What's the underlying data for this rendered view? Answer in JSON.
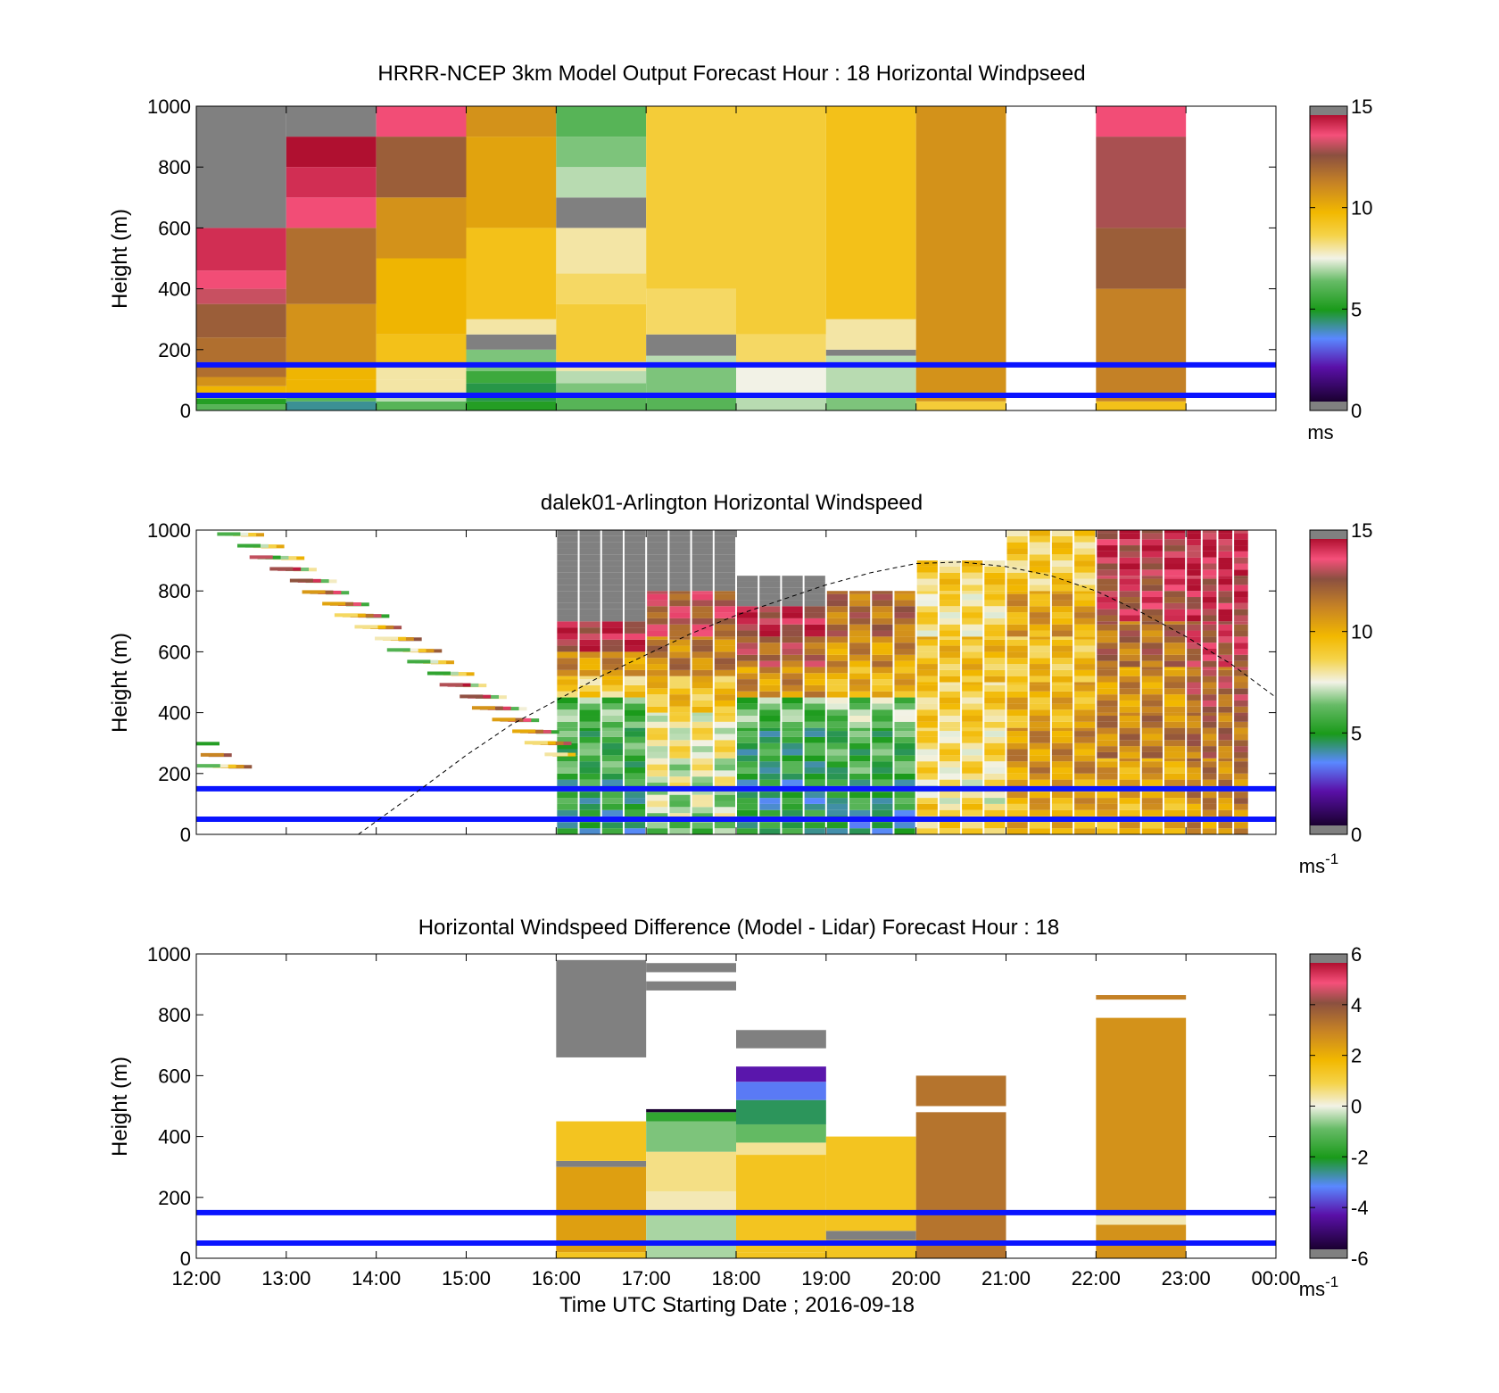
{
  "figure": {
    "xlabel": "Time UTC  Starting Date ; 2016-09-18",
    "x_tick_labels": [
      "12:00",
      "13:00",
      "14:00",
      "15:00",
      "16:00",
      "17:00",
      "18:00",
      "19:00",
      "20:00",
      "21:00",
      "22:00",
      "23:00",
      "00:00"
    ],
    "y_tick_labels": [
      "0",
      "200",
      "400",
      "600",
      "800",
      "1000"
    ],
    "ylabel": "Height (m)",
    "reference_lines_m": [
      50,
      150
    ],
    "reference_line_color": "#0a14ff",
    "missing_color": "#808080"
  },
  "chart_data": [
    {
      "type": "heatmap",
      "title": "HRRR-NCEP 3km Model Output   Forecast Hour : 18 Horizontal Windpseed",
      "ylabel": "Height (m)",
      "xlim": [
        12,
        24
      ],
      "ylim": [
        0,
        1000
      ],
      "colorbar": {
        "ticks": [
          "15",
          "10",
          "5",
          "0"
        ],
        "range": [
          0,
          15
        ],
        "unit": "ms",
        "unit_sup": ""
      },
      "columns": [
        {
          "t": 12,
          "layers": [
            [
              0,
              20,
              6
            ],
            [
              20,
              40,
              5
            ],
            [
              40,
              55,
              8
            ],
            [
              55,
              80,
              10
            ],
            [
              80,
              110,
              11
            ],
            [
              110,
              160,
              12
            ],
            [
              160,
              240,
              12
            ],
            [
              240,
              350,
              12.5
            ],
            [
              350,
              400,
              13.5
            ],
            [
              400,
              460,
              14
            ],
            [
              460,
              600,
              14.5
            ],
            [
              600,
              1000,
              null
            ]
          ]
        },
        {
          "t": 13,
          "layers": [
            [
              0,
              30,
              4
            ],
            [
              30,
              50,
              6
            ],
            [
              50,
              100,
              10
            ],
            [
              100,
              140,
              10
            ],
            [
              140,
              350,
              11
            ],
            [
              350,
              600,
              12
            ],
            [
              600,
              700,
              14
            ],
            [
              700,
              800,
              14.5
            ],
            [
              800,
              900,
              15
            ],
            [
              900,
              1000,
              null
            ]
          ]
        },
        {
          "t": 14,
          "layers": [
            [
              0,
              30,
              6
            ],
            [
              30,
              60,
              7
            ],
            [
              60,
              100,
              8
            ],
            [
              100,
              150,
              8
            ],
            [
              150,
              250,
              9.5
            ],
            [
              250,
              500,
              10
            ],
            [
              500,
              700,
              11
            ],
            [
              700,
              900,
              12.5
            ],
            [
              900,
              1000,
              14
            ]
          ]
        },
        {
          "t": 15,
          "layers": [
            [
              0,
              30,
              5
            ],
            [
              30,
              90,
              4.5
            ],
            [
              90,
              130,
              5.5
            ],
            [
              130,
              200,
              6.5
            ],
            [
              200,
              250,
              null
            ],
            [
              250,
              300,
              8
            ],
            [
              300,
              600,
              9.5
            ],
            [
              600,
              900,
              10.5
            ],
            [
              900,
              1000,
              11
            ]
          ]
        },
        {
          "t": 16,
          "layers": [
            [
              0,
              50,
              6
            ],
            [
              50,
              90,
              6.5
            ],
            [
              90,
              130,
              7
            ],
            [
              130,
              160,
              8
            ],
            [
              160,
              350,
              9
            ],
            [
              350,
              450,
              8.5
            ],
            [
              450,
              600,
              8
            ],
            [
              600,
              700,
              null
            ],
            [
              700,
              800,
              7
            ],
            [
              800,
              900,
              6.5
            ],
            [
              900,
              1000,
              6
            ]
          ]
        },
        {
          "t": 17,
          "layers": [
            [
              0,
              50,
              6
            ],
            [
              50,
              150,
              6.5
            ],
            [
              150,
              180,
              7
            ],
            [
              180,
              250,
              null
            ],
            [
              250,
              400,
              8.5
            ],
            [
              400,
              1000,
              9
            ]
          ]
        },
        {
          "t": 18,
          "layers": [
            [
              0,
              50,
              7
            ],
            [
              50,
              150,
              7.5
            ],
            [
              150,
              250,
              8.5
            ],
            [
              250,
              1000,
              9
            ]
          ]
        },
        {
          "t": 19,
          "layers": [
            [
              0,
              50,
              6.5
            ],
            [
              50,
              180,
              7
            ],
            [
              180,
              200,
              null
            ],
            [
              200,
              300,
              8
            ],
            [
              300,
              1000,
              9.5
            ]
          ]
        },
        {
          "t": 20,
          "layers": [
            [
              0,
              30,
              9
            ],
            [
              30,
              1000,
              11
            ]
          ]
        },
        {
          "t": 22,
          "layers": [
            [
              0,
              30,
              9.5
            ],
            [
              30,
              400,
              11.5
            ],
            [
              400,
              600,
              12.5
            ],
            [
              600,
              900,
              13.2
            ],
            [
              900,
              1000,
              14
            ]
          ]
        }
      ]
    },
    {
      "type": "heatmap",
      "title": "dalek01-Arlington  Horizontal Windspeed",
      "ylabel": "Height (m)",
      "xlim": [
        12,
        24
      ],
      "ylim": [
        0,
        1000
      ],
      "colorbar": {
        "ticks": [
          "15",
          "10",
          "5",
          "0"
        ],
        "range": [
          0,
          15
        ],
        "unit": "ms",
        "unit_sup": "-1"
      },
      "dashed_curve": {
        "t": [
          13.8,
          14.5,
          15.0,
          15.5,
          16.0,
          16.5,
          17.0,
          17.5,
          18.0,
          18.5,
          19.0,
          19.5,
          20.0,
          20.5,
          21.0,
          21.5,
          22.0,
          22.5,
          23.0,
          23.5,
          24.0
        ],
        "height_m": [
          0,
          150,
          260,
          360,
          440,
          520,
          590,
          660,
          720,
          770,
          820,
          860,
          890,
          895,
          880,
          850,
          800,
          730,
          650,
          560,
          450
        ]
      },
      "segments": [
        {
          "t0": 16.0,
          "t1": 17.0,
          "layers": [
            [
              0,
              80,
              4.5
            ],
            [
              80,
              200,
              5
            ],
            [
              200,
              350,
              5.5
            ],
            [
              350,
              450,
              6
            ],
            [
              450,
              520,
              9
            ],
            [
              520,
              600,
              11
            ],
            [
              600,
              700,
              14
            ],
            [
              700,
              1000,
              null
            ]
          ]
        },
        {
          "t0": 17.0,
          "t1": 18.0,
          "layers": [
            [
              0,
              50,
              6
            ],
            [
              50,
              150,
              7
            ],
            [
              150,
              250,
              7.5
            ],
            [
              250,
              400,
              8
            ],
            [
              400,
              520,
              9.5
            ],
            [
              520,
              650,
              11.5
            ],
            [
              650,
              800,
              13
            ],
            [
              800,
              1000,
              null
            ]
          ]
        },
        {
          "t0": 18.0,
          "t1": 19.0,
          "layers": [
            [
              0,
              80,
              5
            ],
            [
              80,
              200,
              4.5
            ],
            [
              200,
              350,
              5
            ],
            [
              350,
              450,
              6
            ],
            [
              450,
              550,
              11
            ],
            [
              550,
              650,
              12.5
            ],
            [
              650,
              750,
              14
            ],
            [
              750,
              850,
              null
            ]
          ]
        },
        {
          "t0": 19.0,
          "t1": 20.0,
          "layers": [
            [
              0,
              80,
              4
            ],
            [
              80,
              200,
              5
            ],
            [
              200,
              350,
              5.5
            ],
            [
              350,
              450,
              6.5
            ],
            [
              450,
              550,
              10
            ],
            [
              550,
              650,
              11
            ],
            [
              650,
              800,
              12
            ]
          ]
        },
        {
          "t0": 20.0,
          "t1": 21.0,
          "layers": [
            [
              0,
              100,
              9
            ],
            [
              100,
              200,
              8
            ],
            [
              200,
              350,
              8.5
            ],
            [
              350,
              500,
              9
            ],
            [
              500,
              650,
              9.5
            ],
            [
              650,
              800,
              8.5
            ],
            [
              800,
              900,
              9
            ]
          ]
        },
        {
          "t0": 21.0,
          "t1": 22.0,
          "layers": [
            [
              0,
              100,
              10
            ],
            [
              100,
              200,
              10.5
            ],
            [
              200,
              350,
              11
            ],
            [
              350,
              500,
              10
            ],
            [
              500,
              650,
              9.5
            ],
            [
              650,
              800,
              10.5
            ],
            [
              800,
              1000,
              9
            ]
          ]
        },
        {
          "t0": 22.0,
          "t1": 23.0,
          "layers": [
            [
              0,
              100,
              10
            ],
            [
              100,
              250,
              10.5
            ],
            [
              250,
              400,
              11.5
            ],
            [
              400,
              550,
              11
            ],
            [
              550,
              700,
              12
            ],
            [
              700,
              850,
              13.5
            ],
            [
              850,
              1000,
              14
            ]
          ]
        },
        {
          "t0": 23.0,
          "t1": 23.7,
          "layers": [
            [
              0,
              100,
              11
            ],
            [
              100,
              250,
              11.5
            ],
            [
              250,
              400,
              12
            ],
            [
              400,
              550,
              12.5
            ],
            [
              550,
              700,
              13.5
            ],
            [
              700,
              850,
              14
            ],
            [
              850,
              1000,
              14.5
            ]
          ]
        }
      ],
      "sparse_points": {
        "t_range": [
          12.0,
          16.0
        ],
        "h_range": [
          200,
          1000
        ],
        "value_range": [
          5,
          15
        ]
      }
    },
    {
      "type": "heatmap",
      "title": "Horizontal Windspeed Difference (Model - Lidar) Forecast Hour : 18",
      "ylabel": "Height (m)",
      "xlabel": "Time UTC  Starting Date ; 2016-09-18",
      "xlim": [
        12,
        24
      ],
      "ylim": [
        0,
        1000
      ],
      "colorbar": {
        "ticks": [
          "6",
          "4",
          "2",
          "0",
          "-2",
          "-4",
          "-6"
        ],
        "range": [
          -6,
          6
        ],
        "unit": "ms",
        "unit_sup": "-1"
      },
      "columns": [
        {
          "t": 16,
          "layers": [
            [
              0,
              20,
              1.5
            ],
            [
              20,
              300,
              2.5
            ],
            [
              300,
              320,
              null
            ],
            [
              320,
              450,
              1.5
            ],
            [
              660,
              980,
              null
            ]
          ]
        },
        {
          "t": 17,
          "layers": [
            [
              0,
              60,
              -0.5
            ],
            [
              60,
              150,
              -0.5
            ],
            [
              150,
              220,
              0.3
            ],
            [
              220,
              350,
              0.6
            ],
            [
              350,
              450,
              -0.8
            ],
            [
              450,
              480,
              -1.8
            ],
            [
              480,
              490,
              -6
            ],
            [
              880,
              910,
              null
            ],
            [
              940,
              970,
              null
            ]
          ]
        },
        {
          "t": 18,
          "layers": [
            [
              0,
              20,
              1.5
            ],
            [
              20,
              340,
              1.5
            ],
            [
              340,
              380,
              0.5
            ],
            [
              380,
              440,
              -1
            ],
            [
              440,
              520,
              -2.5
            ],
            [
              520,
              580,
              -3.5
            ],
            [
              580,
              630,
              -4.5
            ],
            [
              690,
              750,
              null
            ]
          ]
        },
        {
          "t": 19,
          "layers": [
            [
              0,
              60,
              1.5
            ],
            [
              60,
              90,
              null
            ],
            [
              90,
              400,
              1.5
            ]
          ]
        },
        {
          "t": 20,
          "layers": [
            [
              0,
              480,
              3.5
            ],
            [
              500,
              600,
              3.5
            ]
          ]
        },
        {
          "t": 22,
          "layers": [
            [
              0,
              110,
              2.8
            ],
            [
              110,
              140,
              0.3
            ],
            [
              140,
              790,
              2.8
            ],
            [
              850,
              865,
              3.2
            ]
          ]
        }
      ]
    }
  ]
}
